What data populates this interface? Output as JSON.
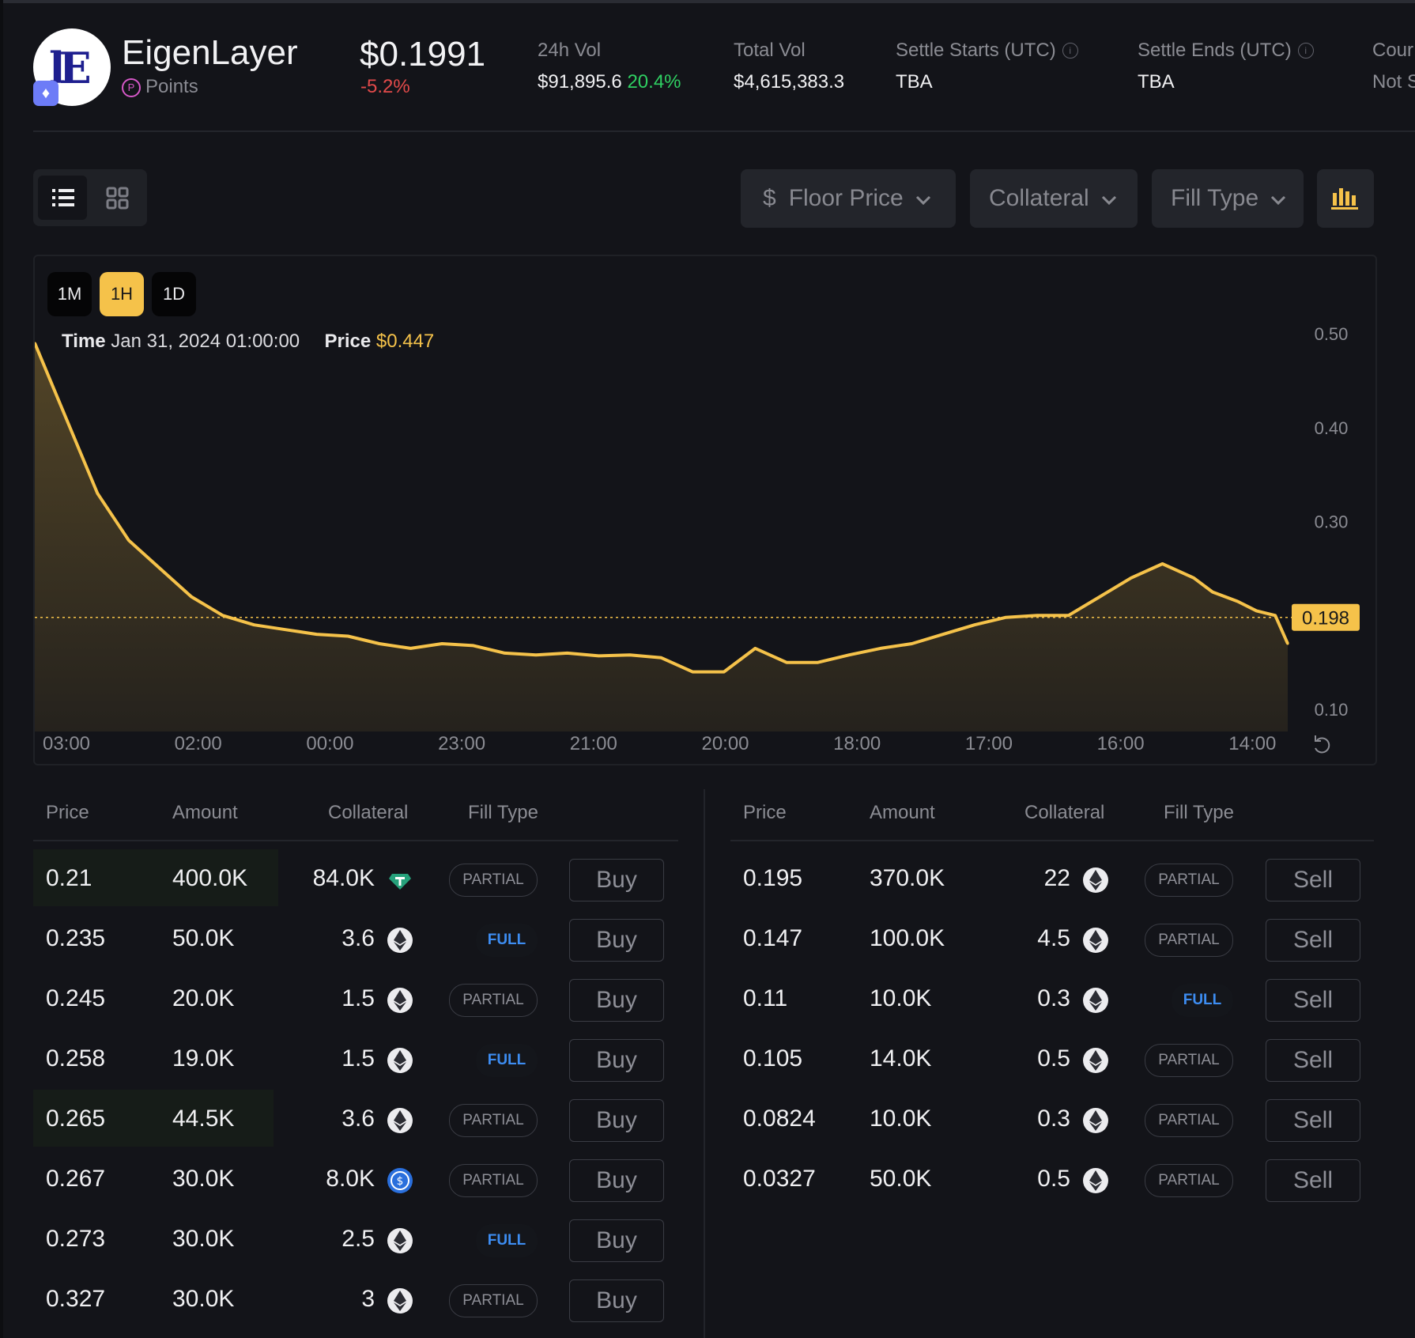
{
  "header": {
    "name": "EigenLayer",
    "category": "Points",
    "price": "$0.1991",
    "change": "-5.2%",
    "stats": [
      {
        "label": "24h Vol",
        "value": "$91,895.6",
        "extra": "20.4%"
      },
      {
        "label": "Total Vol",
        "value": "$4,615,383.3"
      },
      {
        "label": "Settle Starts (UTC)",
        "value": "TBA"
      },
      {
        "label": "Settle Ends (UTC)",
        "value": "TBA"
      },
      {
        "label": "Cour",
        "value": "Not S"
      }
    ]
  },
  "toolbar": {
    "filters": [
      {
        "label": "Floor Price",
        "icon": "dollar-icon"
      },
      {
        "label": "Collateral"
      },
      {
        "label": "Fill Type"
      }
    ]
  },
  "chart_data": {
    "type": "area",
    "ranges": [
      "1M",
      "1H",
      "1D"
    ],
    "active_range": "1H",
    "tooltip": {
      "time_label": "Time",
      "time": "Jan 31, 2024 01:00:00",
      "price_label": "Price",
      "price": "$0.447"
    },
    "x_ticks": [
      "03:00",
      "02:00",
      "00:00",
      "23:00",
      "21:00",
      "20:00",
      "18:00",
      "17:00",
      "16:00",
      "14:00"
    ],
    "y_ticks": [
      "0.50",
      "0.40",
      "0.30",
      "0.10"
    ],
    "ylim": [
      0.09,
      0.5
    ],
    "current_price": 0.198,
    "current_price_label": "0.198",
    "x": [
      0,
      0.025,
      0.05,
      0.075,
      0.1,
      0.125,
      0.15,
      0.175,
      0.2,
      0.225,
      0.25,
      0.275,
      0.3,
      0.325,
      0.35,
      0.375,
      0.4,
      0.425,
      0.45,
      0.475,
      0.5,
      0.525,
      0.55,
      0.575,
      0.6,
      0.625,
      0.65,
      0.675,
      0.7,
      0.725,
      0.75,
      0.775,
      0.8,
      0.825,
      0.85,
      0.875,
      0.9,
      0.925,
      0.94,
      0.96,
      0.975,
      0.99,
      1.0
    ],
    "values": [
      0.49,
      0.41,
      0.33,
      0.28,
      0.25,
      0.22,
      0.2,
      0.19,
      0.185,
      0.18,
      0.178,
      0.17,
      0.165,
      0.17,
      0.168,
      0.16,
      0.158,
      0.16,
      0.157,
      0.158,
      0.155,
      0.14,
      0.14,
      0.165,
      0.15,
      0.15,
      0.158,
      0.165,
      0.17,
      0.18,
      0.19,
      0.198,
      0.2,
      0.2,
      0.22,
      0.24,
      0.255,
      0.24,
      0.225,
      0.215,
      0.205,
      0.2,
      0.17
    ],
    "grid": false,
    "legend": "none"
  },
  "orderbook": {
    "headers": [
      "Price",
      "Amount",
      "Collateral",
      "Fill Type"
    ],
    "buy_label": "Buy",
    "sell_label": "Sell",
    "buys": [
      {
        "price": "0.21",
        "amount": "400.0K",
        "collateral": "84.0K",
        "coin": "usdt",
        "fill": "PARTIAL"
      },
      {
        "price": "0.235",
        "amount": "50.0K",
        "collateral": "3.6",
        "coin": "eth",
        "fill": "FULL"
      },
      {
        "price": "0.245",
        "amount": "20.0K",
        "collateral": "1.5",
        "coin": "eth",
        "fill": "PARTIAL"
      },
      {
        "price": "0.258",
        "amount": "19.0K",
        "collateral": "1.5",
        "coin": "eth",
        "fill": "FULL"
      },
      {
        "price": "0.265",
        "amount": "44.5K",
        "collateral": "3.6",
        "coin": "eth",
        "fill": "PARTIAL"
      },
      {
        "price": "0.267",
        "amount": "30.0K",
        "collateral": "8.0K",
        "coin": "usdc",
        "fill": "PARTIAL"
      },
      {
        "price": "0.273",
        "amount": "30.0K",
        "collateral": "2.5",
        "coin": "eth",
        "fill": "FULL"
      },
      {
        "price": "0.327",
        "amount": "30.0K",
        "collateral": "3",
        "coin": "eth",
        "fill": "PARTIAL"
      }
    ],
    "sells": [
      {
        "price": "0.195",
        "amount": "370.0K",
        "collateral": "22",
        "coin": "eth",
        "fill": "PARTIAL"
      },
      {
        "price": "0.147",
        "amount": "100.0K",
        "collateral": "4.5",
        "coin": "eth",
        "fill": "PARTIAL"
      },
      {
        "price": "0.11",
        "amount": "10.0K",
        "collateral": "0.3",
        "coin": "eth",
        "fill": "FULL"
      },
      {
        "price": "0.105",
        "amount": "14.0K",
        "collateral": "0.5",
        "coin": "eth",
        "fill": "PARTIAL"
      },
      {
        "price": "0.0824",
        "amount": "10.0K",
        "collateral": "0.3",
        "coin": "eth",
        "fill": "PARTIAL"
      },
      {
        "price": "0.0327",
        "amount": "50.0K",
        "collateral": "0.5",
        "coin": "eth",
        "fill": "PARTIAL"
      }
    ]
  },
  "colors": {
    "accent": "#f5c24a",
    "buy": "#2fcf62",
    "sell": "#e8423d",
    "full_badge": "#3d8df2"
  }
}
